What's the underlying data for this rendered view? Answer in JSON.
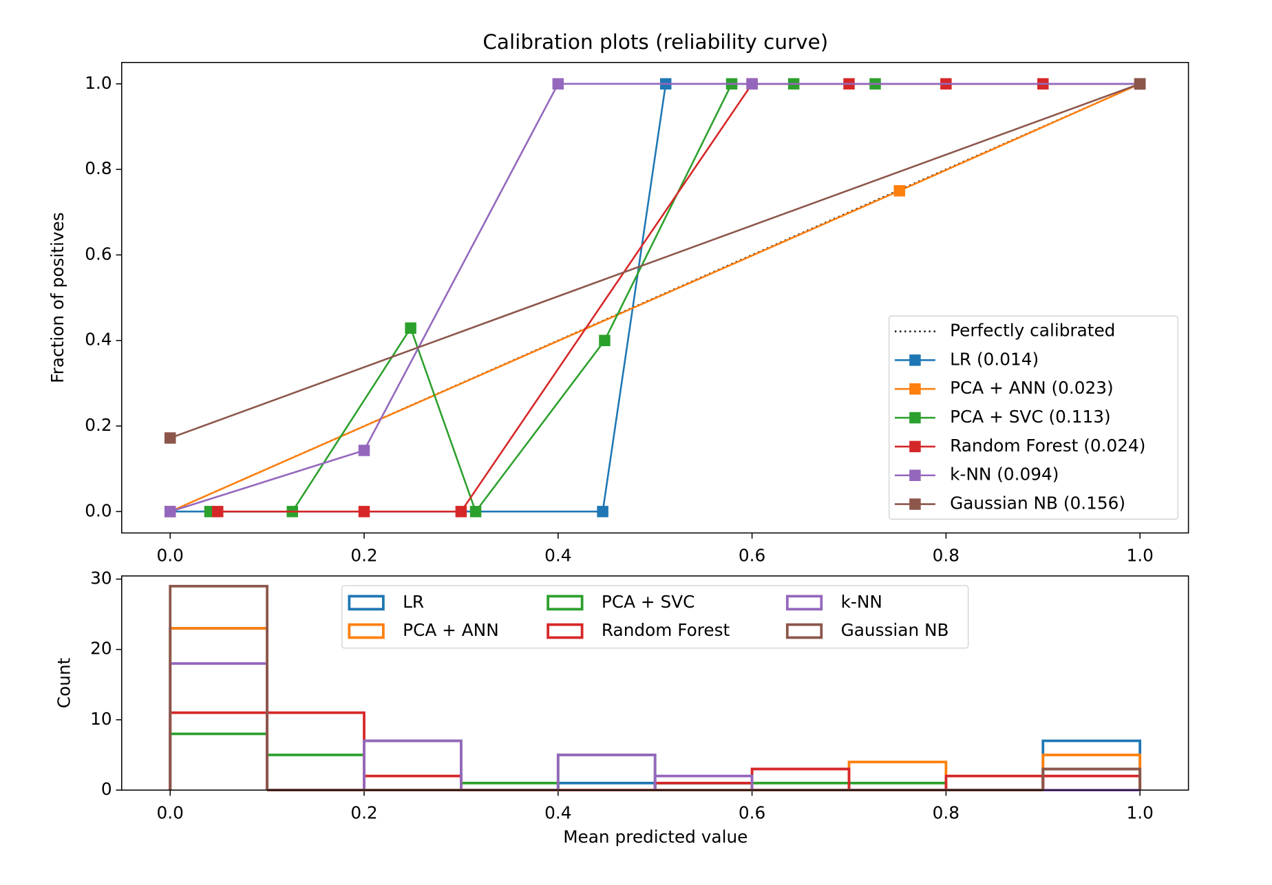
{
  "chart_data": [
    {
      "type": "line",
      "title": "Calibration plots  (reliability curve)",
      "ylabel": "Fraction of positives",
      "xlim": [
        -0.05,
        1.05
      ],
      "ylim": [
        -0.05,
        1.05
      ],
      "xticks": [
        {
          "value": 0,
          "label": "0.0"
        },
        0.2,
        0.4,
        0.6,
        0.8,
        {
          "value": 1,
          "label": "1.0"
        }
      ],
      "yticks": [
        {
          "value": 0,
          "label": "0.0"
        },
        0.2,
        0.4,
        0.6,
        0.8,
        {
          "value": 1,
          "label": "1.0"
        }
      ],
      "legend": "lower right",
      "series": [
        {
          "name": "Perfectly calibrated",
          "color": "#000000",
          "linestyle": "dotted",
          "marker": "none",
          "x": [
            0,
            1
          ],
          "values": [
            0,
            1
          ]
        },
        {
          "name": "LR (0.014)",
          "color": "#1f77b4",
          "linestyle": "solid",
          "marker": "square",
          "x": [
            0,
            0.446,
            0.511,
            1.0
          ],
          "values": [
            0,
            0,
            1,
            1
          ]
        },
        {
          "name": "PCA + ANN (0.023)",
          "color": "#ff7f0e",
          "linestyle": "solid",
          "marker": "square",
          "x": [
            0,
            0.752,
            1.0
          ],
          "values": [
            0,
            0.75,
            1
          ]
        },
        {
          "name": "PCA + SVC (0.113)",
          "color": "#2ca02c",
          "linestyle": "solid",
          "marker": "square",
          "x": [
            0.041,
            0.126,
            0.248,
            0.315,
            0.448,
            0.579,
            0.643,
            0.727,
            1.0
          ],
          "values": [
            0,
            0,
            0.429,
            0,
            0.4,
            1,
            1,
            1,
            1
          ]
        },
        {
          "name": "Random Forest (0.024)",
          "color": "#d62728",
          "linestyle": "solid",
          "marker": "square",
          "x": [
            0.049,
            0.2,
            0.3,
            0.6,
            0.7,
            0.8,
            0.9,
            1.0
          ],
          "values": [
            0,
            0,
            0,
            1,
            1,
            1,
            1,
            1
          ]
        },
        {
          "name": "k-NN (0.094)",
          "color": "#9467bd",
          "linestyle": "solid",
          "marker": "square",
          "x": [
            0,
            0.2,
            0.4,
            0.6,
            1.0
          ],
          "values": [
            0,
            0.143,
            1,
            1,
            1
          ]
        },
        {
          "name": "Gaussian NB (0.156)",
          "color": "#8c564b",
          "linestyle": "solid",
          "marker": "square",
          "x": [
            0,
            1.0
          ],
          "values": [
            0.172,
            1
          ]
        }
      ]
    },
    {
      "type": "histogram",
      "xlabel": "Mean predicted value",
      "ylabel": "Count",
      "xlim": [
        -0.05,
        1.05
      ],
      "ylim": [
        0,
        30.45
      ],
      "xticks": [
        {
          "value": 0,
          "label": "0.0"
        },
        0.2,
        0.4,
        0.6,
        0.8,
        {
          "value": 1,
          "label": "1.0"
        }
      ],
      "yticks": [
        0,
        10,
        20,
        30
      ],
      "legend": "upper center",
      "bins": [
        0,
        0.1,
        0.2,
        0.3,
        0.4,
        0.5,
        0.6,
        0.7,
        0.8,
        0.9,
        1.0
      ],
      "series": [
        {
          "name": "LR",
          "color": "#1f77b4",
          "values": [
            23,
            0,
            0,
            0,
            1,
            1,
            0,
            0,
            0,
            7
          ]
        },
        {
          "name": "PCA + ANN",
          "color": "#ff7f0e",
          "values": [
            23,
            0,
            0,
            0,
            0,
            0,
            0,
            4,
            0,
            5
          ]
        },
        {
          "name": "PCA + SVC",
          "color": "#2ca02c",
          "values": [
            8,
            5,
            7,
            1,
            5,
            1,
            1,
            1,
            0,
            3
          ]
        },
        {
          "name": "Random Forest",
          "color": "#d62728",
          "values": [
            11,
            11,
            2,
            0,
            0,
            1,
            3,
            0,
            2,
            2
          ]
        },
        {
          "name": "k-NN",
          "color": "#9467bd",
          "values": [
            18,
            0,
            7,
            0,
            5,
            2,
            0,
            0,
            0,
            0
          ]
        },
        {
          "name": "Gaussian NB",
          "color": "#8c564b",
          "values": [
            29,
            0,
            0,
            0,
            0,
            0,
            0,
            0,
            0,
            3
          ]
        }
      ]
    }
  ]
}
